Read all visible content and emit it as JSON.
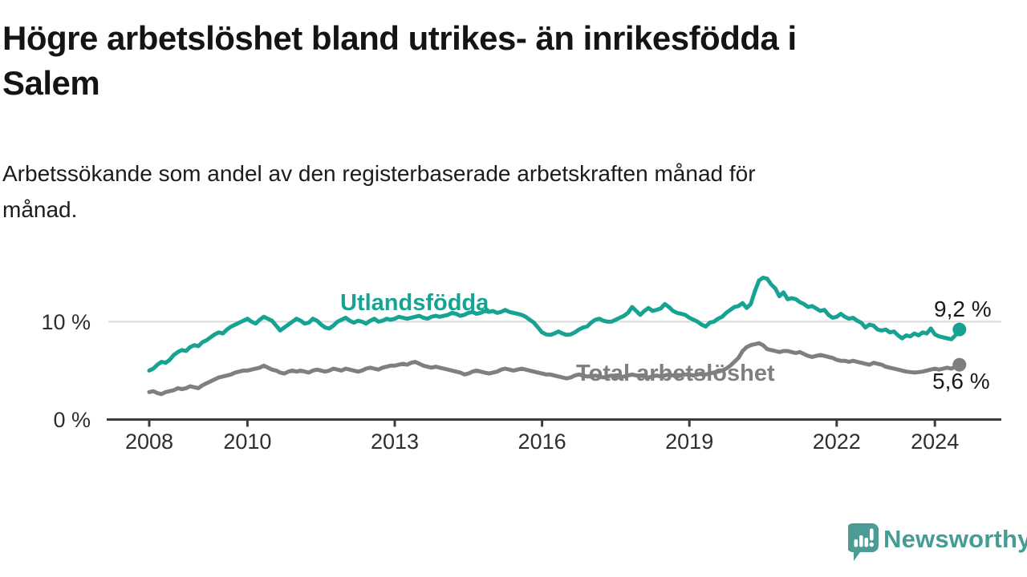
{
  "header": {
    "title_lines": [
      "Högre arbetslöshet bland utrikes- än inrikesfödda i",
      "Salem"
    ],
    "subtitle_lines": [
      "Arbetssökande som andel av den registerbaserade arbetskraften månad för",
      "månad."
    ]
  },
  "chart_data": {
    "type": "line",
    "title": "Högre arbetslöshet bland utrikes- än inrikesfödda i Salem",
    "subtitle": "Arbetssökande som andel av den registerbaserade arbetskraften månad för månad.",
    "x_unit": "month",
    "x_start_year": 2008,
    "x_end": "2024-07",
    "xlim": [
      2007.1,
      2025.4
    ],
    "ylim": [
      0,
      15.5
    ],
    "grid": "horizontal-at-10-only",
    "x_ticks": [
      "2008",
      "2010",
      "2013",
      "2016",
      "2019",
      "2022",
      "2024"
    ],
    "y_ticks": [
      {
        "value": 10,
        "label": "10 %"
      },
      {
        "value": 0,
        "label": "0 %"
      }
    ],
    "series": [
      {
        "name": "Utlandsfödda",
        "color": "#17a392",
        "end_label": "9,2 %",
        "end_value": 9.2,
        "values": [
          5.0,
          5.2,
          5.6,
          5.9,
          5.8,
          6.1,
          6.6,
          6.9,
          7.1,
          7.0,
          7.4,
          7.6,
          7.5,
          7.9,
          8.1,
          8.4,
          8.7,
          8.9,
          8.8,
          9.2,
          9.5,
          9.7,
          9.9,
          10.1,
          10.3,
          10.0,
          9.8,
          10.2,
          10.5,
          10.3,
          10.1,
          9.6,
          9.1,
          9.4,
          9.7,
          10.0,
          10.3,
          10.1,
          9.8,
          9.9,
          10.3,
          10.1,
          9.7,
          9.4,
          9.3,
          9.6,
          10.0,
          10.2,
          10.4,
          10.1,
          9.9,
          10.1,
          10.0,
          9.8,
          10.1,
          10.3,
          10.0,
          10.1,
          10.3,
          10.2,
          10.3,
          10.5,
          10.4,
          10.3,
          10.4,
          10.5,
          10.6,
          10.4,
          10.3,
          10.5,
          10.6,
          10.5,
          10.6,
          10.7,
          10.9,
          10.8,
          10.6,
          10.7,
          10.9,
          11.0,
          10.8,
          10.9,
          11.1,
          11.0,
          11.1,
          10.9,
          11.0,
          11.2,
          11.0,
          10.9,
          10.8,
          10.7,
          10.5,
          10.2,
          9.9,
          9.4,
          8.9,
          8.7,
          8.65,
          8.8,
          9.0,
          8.8,
          8.65,
          8.7,
          8.9,
          9.2,
          9.4,
          9.5,
          9.9,
          10.2,
          10.3,
          10.1,
          10.0,
          10.0,
          10.2,
          10.4,
          10.6,
          10.9,
          11.5,
          11.1,
          10.7,
          11.1,
          11.4,
          11.1,
          11.2,
          11.35,
          11.8,
          11.5,
          11.1,
          10.9,
          10.8,
          10.7,
          10.4,
          10.2,
          10.0,
          9.7,
          9.5,
          9.9,
          10.0,
          10.3,
          10.5,
          10.9,
          11.2,
          11.5,
          11.6,
          11.9,
          11.4,
          11.8,
          13.1,
          14.2,
          14.5,
          14.4,
          13.8,
          13.4,
          12.6,
          13.0,
          12.3,
          12.4,
          12.3,
          12.0,
          11.8,
          11.5,
          11.6,
          11.35,
          11.1,
          11.2,
          10.7,
          10.4,
          10.5,
          10.8,
          10.5,
          10.3,
          10.4,
          10.1,
          9.9,
          9.4,
          9.7,
          9.6,
          9.2,
          9.1,
          9.2,
          8.9,
          9.0,
          8.6,
          8.3,
          8.6,
          8.5,
          8.8,
          8.6,
          8.9,
          8.8,
          9.3,
          8.7,
          8.5,
          8.4,
          8.3,
          8.2,
          8.6,
          9.2
        ]
      },
      {
        "name": "Total arbetslöshet",
        "color": "#7f7f7f",
        "end_label": "5,6 %",
        "end_value": 5.6,
        "values": [
          2.8,
          2.9,
          2.7,
          2.6,
          2.8,
          2.9,
          3.0,
          3.2,
          3.1,
          3.2,
          3.4,
          3.3,
          3.2,
          3.5,
          3.7,
          3.9,
          4.1,
          4.3,
          4.4,
          4.5,
          4.6,
          4.8,
          4.9,
          5.0,
          5.0,
          5.1,
          5.2,
          5.3,
          5.5,
          5.3,
          5.1,
          5.0,
          4.8,
          4.7,
          4.9,
          5.0,
          4.9,
          5.0,
          4.9,
          4.8,
          5.0,
          5.1,
          5.0,
          4.9,
          5.0,
          5.2,
          5.1,
          5.0,
          5.2,
          5.1,
          5.0,
          4.9,
          5.0,
          5.2,
          5.3,
          5.2,
          5.1,
          5.3,
          5.4,
          5.5,
          5.5,
          5.6,
          5.7,
          5.6,
          5.8,
          5.9,
          5.7,
          5.5,
          5.4,
          5.3,
          5.4,
          5.3,
          5.2,
          5.1,
          5.0,
          4.9,
          4.8,
          4.6,
          4.7,
          4.9,
          5.0,
          4.9,
          4.8,
          4.7,
          4.8,
          4.9,
          5.1,
          5.2,
          5.1,
          5.0,
          5.1,
          5.2,
          5.1,
          5.0,
          4.9,
          4.8,
          4.7,
          4.6,
          4.6,
          4.5,
          4.4,
          4.3,
          4.2,
          4.3,
          4.5,
          4.6,
          4.5,
          4.4,
          4.4,
          4.5,
          4.4,
          4.3,
          4.4,
          4.5,
          4.4,
          4.3,
          4.4,
          4.5,
          4.6,
          4.5,
          4.5,
          4.4,
          4.3,
          4.4,
          4.5,
          4.4,
          4.5,
          4.6,
          4.5,
          4.4,
          4.5,
          4.6,
          4.6,
          4.5,
          4.6,
          4.7,
          4.6,
          4.7,
          4.8,
          4.9,
          5.0,
          5.2,
          5.5,
          5.9,
          6.3,
          7.0,
          7.4,
          7.6,
          7.7,
          7.8,
          7.6,
          7.2,
          7.1,
          7.0,
          6.9,
          7.0,
          7.0,
          6.9,
          6.8,
          6.9,
          6.7,
          6.5,
          6.4,
          6.5,
          6.6,
          6.5,
          6.4,
          6.3,
          6.1,
          6.0,
          6.0,
          5.9,
          6.0,
          5.9,
          5.8,
          5.7,
          5.6,
          5.8,
          5.7,
          5.6,
          5.4,
          5.3,
          5.2,
          5.1,
          5.0,
          4.9,
          4.85,
          4.8,
          4.85,
          4.9,
          5.0,
          5.1,
          5.2,
          5.1,
          5.2,
          5.3,
          5.2,
          5.4,
          5.6
        ]
      }
    ],
    "palette": {
      "grid_color": "#d9d9d9",
      "axis_color": "#3d3d3d",
      "tick_text_color": "#2e2e2e",
      "value_label_color": "#1a1a1a"
    }
  },
  "footer": {
    "brand": "Newsworthy",
    "brand_color": "#459c94",
    "logo_icon": "bar-chart-speech-bubble"
  }
}
